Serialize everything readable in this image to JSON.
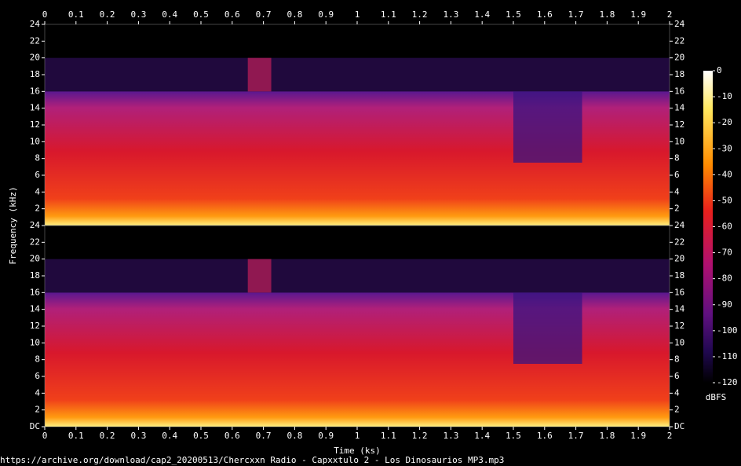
{
  "chart_data": {
    "type": "spectrogram",
    "xlabel": "Time (ks)",
    "ylabel": "Frequency (kHz)",
    "xlim": [
      0,
      2
    ],
    "xticks": [
      0,
      0.1,
      0.2,
      0.3,
      0.4,
      0.5,
      0.6,
      0.7,
      0.8,
      0.9,
      1,
      1.1,
      1.2,
      1.3,
      1.4,
      1.5,
      1.6,
      1.7,
      1.8,
      1.9,
      2
    ],
    "ylim": [
      0,
      24
    ],
    "yticks": [
      {
        "value": 0,
        "label": "DC"
      },
      2,
      4,
      6,
      8,
      10,
      12,
      14,
      16,
      18,
      20,
      22,
      24
    ],
    "colorbar": {
      "label": "dBFS",
      "lim": [
        -120,
        0
      ],
      "ticks": [
        0,
        -10,
        -20,
        -30,
        -40,
        -50,
        -60,
        -70,
        -80,
        -90,
        -100,
        -110,
        -120
      ]
    },
    "footer": "https://archive.org/download/cap2_20200513/Chercxxn Radio - Capxxtulo 2 - Los Dinosaurios MP3.mp3"
  }
}
